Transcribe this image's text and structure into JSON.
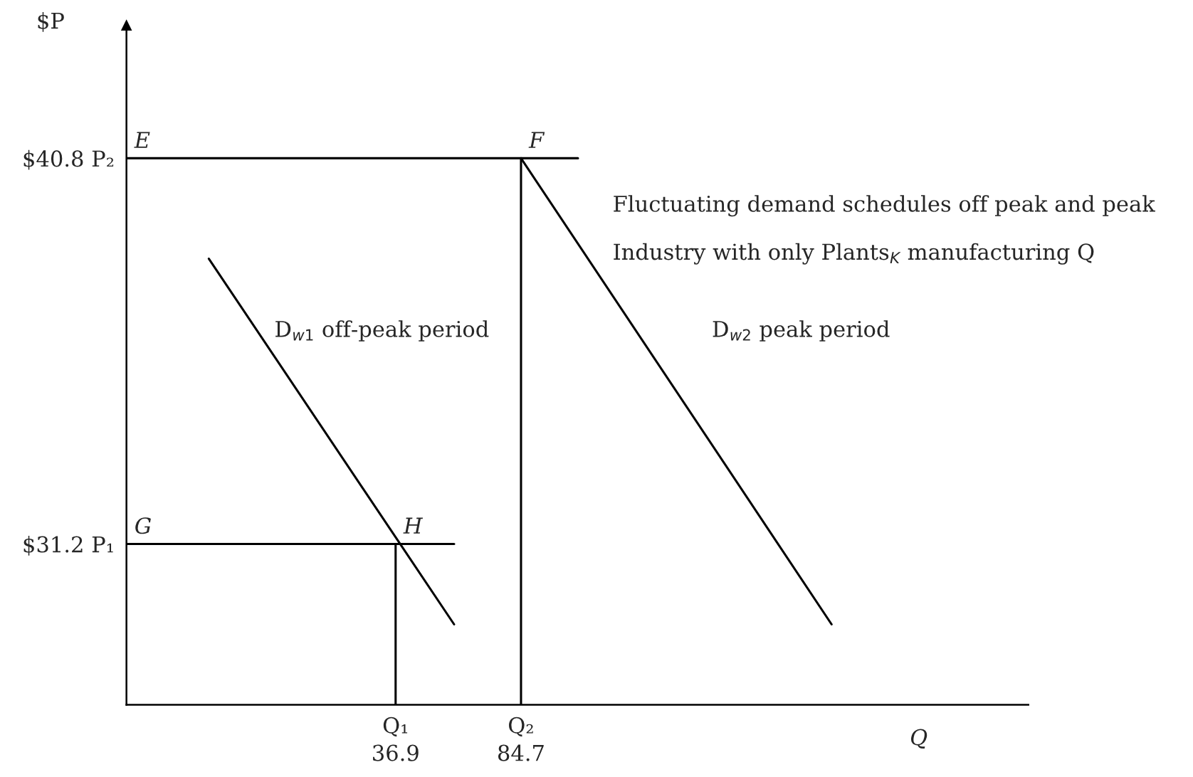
{
  "chart_data": {
    "type": "line",
    "series": [
      {
        "color": "#000000",
        "x": [
          -34.3,
          59.2
        ],
        "values": [
          38.3,
          29.2
        ]
      },
      {
        "color": "#000000",
        "x": [
          84.7,
          203.1
        ],
        "values": [
          40.8,
          29.2
        ]
      },
      {
        "color": "#000000",
        "x": [
          -65.7,
          106.4
        ],
        "values": [
          40.8,
          40.8
        ]
      },
      {
        "color": "#000000",
        "x": [
          -65.7,
          59.2
        ],
        "values": [
          31.2,
          31.2
        ]
      },
      {
        "color": "#000000",
        "x": [
          36.9,
          36.9
        ],
        "values": [
          27.2,
          31.2
        ]
      },
      {
        "color": "#000000",
        "x": [
          84.7,
          84.7
        ],
        "values": [
          27.2,
          40.8
        ]
      }
    ],
    "xlim": [
      -65.7,
      278.1
    ],
    "ylim": [
      27.2,
      44.1
    ],
    "xticks": [
      36.9,
      84.7
    ],
    "yticks": [
      {
        "value": 31.2,
        "label": "$31.2 P₁"
      },
      {
        "value": 40.8,
        "label": "$40.8 P₂"
      }
    ],
    "xlabel": "Q",
    "ylabel": "$P",
    "annotations": [
      {
        "text": "E",
        "x": -65.7,
        "y": 40.8
      },
      {
        "text": "F",
        "x": 84.7,
        "y": 40.8
      },
      {
        "text": "G",
        "x": -65.7,
        "y": 31.2
      },
      {
        "text": "H",
        "x": 36.9,
        "y": 31.2
      },
      {
        "text": "Q₁",
        "x": 36.9,
        "y": 27.2
      },
      {
        "text": "Q₂",
        "x": 84.7,
        "y": 27.2
      },
      "D$_{w1}$ off-peak period",
      "D$_{w2}$ peak period",
      "Fluctuating demand schedules off peak and peak",
      "Industry with only Plants$_{K}$ manufacturing Q"
    ]
  }
}
